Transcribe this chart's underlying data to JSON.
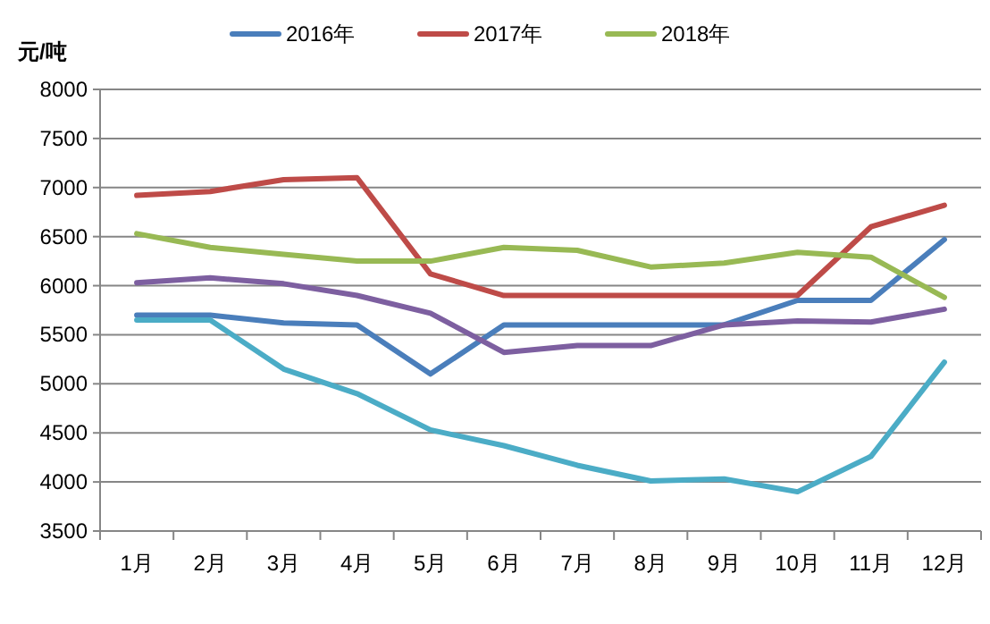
{
  "chart_data": {
    "type": "line",
    "ylabel": "元/吨",
    "categories": [
      "1月",
      "2月",
      "3月",
      "4月",
      "5月",
      "6月",
      "7月",
      "8月",
      "9月",
      "10月",
      "11月",
      "12月"
    ],
    "series": [
      {
        "name": "2016年",
        "color": "#4a7ebb",
        "values": [
          5700,
          5700,
          5620,
          5600,
          5100,
          5600,
          5600,
          5600,
          5600,
          5850,
          5850,
          6470
        ]
      },
      {
        "name": "2017年",
        "color": "#be4b48",
        "values": [
          6920,
          6960,
          7080,
          7100,
          6120,
          5900,
          5900,
          5900,
          5900,
          5900,
          6600,
          6820
        ]
      },
      {
        "name": "2018年",
        "color": "#98b954",
        "values": [
          6530,
          6390,
          6320,
          6250,
          6250,
          6390,
          6360,
          6190,
          6230,
          6340,
          6290,
          5880
        ]
      },
      {
        "color": "#7d5fa0",
        "values": [
          6030,
          6080,
          6020,
          5900,
          5720,
          5320,
          5390,
          5390,
          5600,
          5640,
          5630,
          5760
        ]
      },
      {
        "color": "#4bacc6",
        "values": [
          5650,
          5650,
          5150,
          4900,
          4530,
          4370,
          4170,
          4010,
          4030,
          3900,
          4260,
          5220
        ]
      }
    ],
    "ylim": [
      3500,
      8000
    ],
    "yticks": [
      3500,
      4000,
      4500,
      5000,
      5500,
      6000,
      6500,
      7000,
      7500,
      8000
    ],
    "grid": "y",
    "legend": "top",
    "marker": "none",
    "line_style": "solid"
  }
}
